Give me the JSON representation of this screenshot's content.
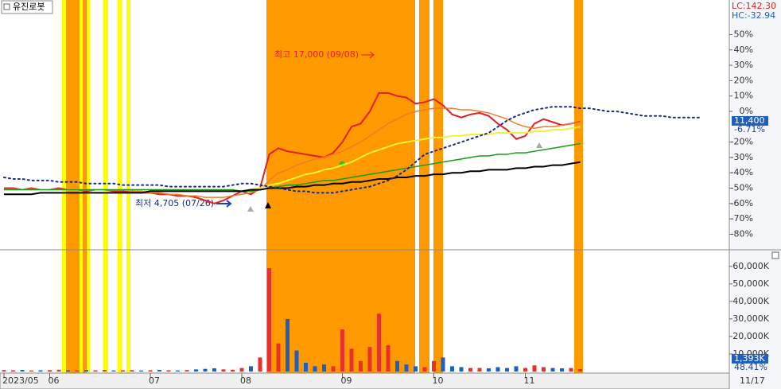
{
  "chart_data": [
    {
      "type": "line",
      "title": "유진로봇",
      "lc_label": "LC:142.30",
      "hc_label": "HC:-32.94",
      "categories": [
        "2023/05",
        null,
        null,
        null,
        null,
        "06",
        null,
        null,
        null,
        null,
        null,
        null,
        null,
        null,
        null,
        null,
        "07",
        null,
        null,
        null,
        null,
        null,
        null,
        null,
        null,
        null,
        "08",
        null,
        null,
        null,
        null,
        null,
        null,
        null,
        null,
        null,
        null,
        "09",
        null,
        null,
        null,
        null,
        null,
        null,
        null,
        null,
        null,
        "10",
        null,
        null,
        null,
        null,
        null,
        null,
        null,
        null,
        null,
        "11",
        null,
        null,
        null,
        null,
        null,
        null,
        null,
        null,
        null,
        null,
        null,
        null,
        null,
        null,
        null,
        null,
        null,
        null,
        null
      ],
      "series": [
        {
          "color": "#e02020",
          "width": 2,
          "values": [
            -50,
            -50,
            -51,
            -50,
            -51,
            -51,
            -50,
            -51,
            -51,
            -52,
            -51,
            -51,
            -52,
            -52,
            -52,
            -53,
            -53,
            -54,
            -54,
            -55,
            -55,
            -56,
            -58,
            -60,
            -58,
            -55,
            -52,
            -54,
            -50,
            -28,
            -24,
            -26,
            -27,
            -28,
            -29,
            -30,
            -27,
            -20,
            -10,
            -8,
            0,
            12,
            12,
            10,
            9,
            5,
            6,
            8,
            4,
            -2,
            -4,
            -2,
            -1,
            -3,
            -8,
            -12,
            -18,
            -16,
            -8,
            -5,
            -7,
            -9,
            -8,
            -6.71,
            null,
            null,
            null,
            null,
            null,
            null,
            null,
            null,
            null,
            null,
            null,
            null,
            null
          ]
        },
        {
          "color": "#f07b2a",
          "width": 1.5,
          "values": [
            -51,
            -51,
            -51,
            -51,
            -51,
            -51,
            -51,
            -51,
            -51,
            -51,
            -51,
            -51,
            -51,
            -51,
            -52,
            -52,
            -53,
            -53,
            -54,
            -54,
            -55,
            -55,
            -56,
            -56,
            -56,
            -55,
            -54,
            -53,
            -51,
            -45,
            -40,
            -38,
            -35,
            -33,
            -31,
            -30,
            -28,
            -26,
            -23,
            -20,
            -16,
            -12,
            -8,
            -5,
            -2,
            0,
            1,
            2,
            2,
            2,
            1,
            1,
            0,
            -1,
            -3,
            -5,
            -8,
            -10,
            -11,
            -10,
            -10,
            -9,
            -8,
            -7,
            null,
            null,
            null,
            null,
            null,
            null,
            null,
            null,
            null,
            null,
            null,
            null,
            null
          ]
        },
        {
          "color": "#f2f23a",
          "width": 2,
          "values": [
            -51,
            -51,
            -51,
            -51,
            -51,
            -51,
            -51,
            -51,
            -51,
            -51,
            -51,
            -51,
            -51,
            -51,
            -51,
            -51,
            -51,
            -51,
            -51,
            -51,
            -52,
            -52,
            -52,
            -52,
            -52,
            -52,
            -52,
            -51,
            -50,
            -48,
            -47,
            -45,
            -43,
            -41,
            -40,
            -38,
            -37,
            -35,
            -33,
            -30,
            -27,
            -25,
            -23,
            -21,
            -20,
            -19,
            -18,
            -17,
            -17,
            -16,
            -16,
            -15,
            -15,
            -15,
            -14,
            -14,
            -14,
            -14,
            -13,
            -13,
            -12,
            -12,
            -11,
            -10,
            null,
            null,
            null,
            null,
            null,
            null,
            null,
            null,
            null,
            null,
            null,
            null,
            null
          ]
        },
        {
          "color": "#1a9a1a",
          "width": 1.5,
          "values": [
            -51,
            -51,
            -51,
            -51,
            -51,
            -51,
            -51,
            -51,
            -51,
            -51,
            -51,
            -51,
            -51,
            -51,
            -51,
            -51,
            -51,
            -51,
            -51,
            -51,
            -51,
            -51,
            -51,
            -51,
            -51,
            -51,
            -52,
            -52,
            -51,
            -50,
            -49,
            -48,
            -48,
            -47,
            -46,
            -45,
            -45,
            -44,
            -43,
            -42,
            -41,
            -40,
            -39,
            -38,
            -37,
            -36,
            -35,
            -34,
            -33,
            -32,
            -31,
            -30,
            -29,
            -29,
            -28,
            -28,
            -27,
            -27,
            -26,
            -25,
            -24,
            -23,
            -22,
            -21,
            null,
            null,
            null,
            null,
            null,
            null,
            null,
            null,
            null,
            null,
            null,
            null,
            null
          ]
        },
        {
          "color": "#000000",
          "width": 2,
          "values": [
            -54,
            -54,
            -54,
            -54,
            -53,
            -53,
            -53,
            -53,
            -53,
            -53,
            -53,
            -53,
            -53,
            -53,
            -53,
            -53,
            -52,
            -52,
            -52,
            -52,
            -52,
            -52,
            -52,
            -52,
            -52,
            -52,
            -52,
            -51,
            -51,
            -50,
            -50,
            -50,
            -49,
            -49,
            -48,
            -48,
            -47,
            -47,
            -46,
            -46,
            -45,
            -44,
            -44,
            -43,
            -43,
            -42,
            -42,
            -41,
            -41,
            -40,
            -40,
            -39,
            -39,
            -38,
            -38,
            -38,
            -37,
            -37,
            -36,
            -36,
            -35,
            -35,
            -34,
            -33,
            null,
            null,
            null,
            null,
            null,
            null,
            null,
            null,
            null,
            null,
            null,
            null,
            null
          ]
        },
        {
          "color": "#1a2a8a",
          "width": 2,
          "dashed": true,
          "values": [
            -43,
            -44,
            -44,
            -45,
            -45,
            -45,
            -46,
            -46,
            -46,
            -47,
            -47,
            -47,
            -47,
            -48,
            -48,
            -48,
            -48,
            -48,
            -49,
            -49,
            -49,
            -49,
            -49,
            -49,
            -49,
            -48,
            -47,
            -47,
            -48,
            -49,
            -50,
            -51,
            -52,
            -52,
            -53,
            -53,
            -53,
            -52,
            -51,
            -50,
            -49,
            -47,
            -45,
            -42,
            -38,
            -33,
            -28,
            -26,
            -24,
            -22,
            -20,
            -18,
            -16,
            -14,
            -10,
            -6,
            -3,
            -1,
            1,
            2,
            3,
            3,
            3,
            2,
            2,
            1,
            0,
            0,
            -1,
            -2,
            -3,
            -3,
            -3,
            -4,
            -4,
            -4,
            -4
          ]
        }
      ],
      "ylim": [
        -89.6,
        72.5
      ],
      "yticks": [
        {
          "value": 50,
          "label": "50%"
        },
        {
          "value": 40,
          "label": "40%"
        },
        {
          "value": 30,
          "label": "30%"
        },
        {
          "value": 20,
          "label": "20%"
        },
        {
          "value": 10,
          "label": "10%"
        },
        {
          "value": 0,
          "label": "0%"
        },
        {
          "value": -20,
          "label": "-20%"
        },
        {
          "value": -30,
          "label": "-30%"
        },
        {
          "value": -40,
          "label": "-40%"
        },
        {
          "value": -50,
          "label": "-50%"
        },
        {
          "value": -60,
          "label": "-60%"
        },
        {
          "value": -70,
          "label": "-70%"
        },
        {
          "value": -80,
          "label": "-80%"
        }
      ],
      "current": {
        "value": -6.71,
        "label": "-6.71%"
      },
      "current_price": "11,400",
      "annotations": [
        "최고 17,000 (09/08)",
        "최저 4,705 (07/26)"
      ],
      "current_date": "11/17"
    },
    {
      "type": "bar",
      "up_color": "#e8312a",
      "down_color": "#1f5fbf",
      "values": [
        800,
        700,
        900,
        600,
        700,
        800,
        1000,
        700,
        600,
        800,
        700,
        900,
        600,
        700,
        800,
        600,
        700,
        900,
        700,
        600,
        800,
        1200,
        1500,
        1800,
        1200,
        1000,
        2000,
        3000,
        8000,
        59000,
        16000,
        30000,
        12000,
        5000,
        3000,
        4000,
        3000,
        24000,
        13000,
        6000,
        14000,
        33000,
        15000,
        6000,
        4000,
        3000,
        2500,
        6000,
        8000,
        3000,
        2500,
        2000,
        2000,
        1800,
        2500,
        2000,
        3000,
        2000,
        3500,
        2500,
        2000,
        1800,
        2000,
        1393,
        null,
        null,
        null,
        null,
        null,
        null,
        null,
        null,
        null,
        null,
        null,
        null,
        null
      ],
      "ylim": [
        0,
        69000
      ],
      "yticks": [
        {
          "value": 60000,
          "label": "60,000K"
        },
        {
          "value": 50000,
          "label": "50,000K"
        },
        {
          "value": 40000,
          "label": "40,000K"
        },
        {
          "value": 30000,
          "label": "30,000K"
        },
        {
          "value": 20000,
          "label": "20,000K"
        },
        {
          "value": 10000,
          "label": "10,000K"
        }
      ],
      "current": {
        "value": 1393,
        "label": "1,393K"
      },
      "ratio_label": "48.41%"
    }
  ]
}
